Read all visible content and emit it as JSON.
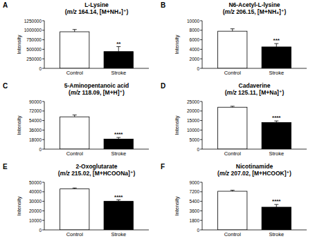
{
  "chart_data": [
    {
      "type": "bar",
      "label": "A",
      "title": "L-Lysine",
      "subtitle": "(m/z 164.14, [M+NH₄]⁺)",
      "y_label": "Intensity",
      "categories": [
        "Control",
        "Stroke"
      ],
      "values": [
        960000,
        440000
      ],
      "errors": [
        60000,
        130000
      ],
      "colors": [
        "#ffffff",
        "#000000"
      ],
      "annotation": "**",
      "ylim": [
        0,
        1250000
      ],
      "yticks": [
        0,
        250000,
        500000,
        750000,
        1000000,
        1250000
      ]
    },
    {
      "type": "bar",
      "label": "B",
      "title": "N6-Acetyl-L-lysine",
      "subtitle": "(m/z 206.15, [M+NH₄]⁺)",
      "y_label": "Intensity",
      "categories": [
        "Control",
        "Stroke"
      ],
      "values": [
        7800,
        4500
      ],
      "errors": [
        500,
        700
      ],
      "colors": [
        "#ffffff",
        "#000000"
      ],
      "annotation": "***",
      "ylim": [
        0,
        10000
      ],
      "yticks": [
        0,
        2000,
        4000,
        6000,
        8000,
        10000
      ]
    },
    {
      "type": "bar",
      "label": "C",
      "title": "5-Aminopentanoic acid",
      "subtitle": "(m/z 118.09, [M+H]⁺)",
      "y_label": "Intensity",
      "categories": [
        "Control",
        "Stroke"
      ],
      "values": [
        61000,
        19000
      ],
      "errors": [
        3500,
        3000
      ],
      "colors": [
        "#ffffff",
        "#000000"
      ],
      "annotation": "****",
      "ylim": [
        0,
        90000
      ],
      "yticks": [
        0,
        18000,
        36000,
        54000,
        72000,
        90000
      ]
    },
    {
      "type": "bar",
      "label": "D",
      "title": "Cadaverine",
      "subtitle": "(m/z 125.11, [M+Na]⁺)",
      "y_label": "Intensity",
      "categories": [
        "Control",
        "Stroke"
      ],
      "values": [
        22000,
        14000
      ],
      "errors": [
        500,
        800
      ],
      "colors": [
        "#ffffff",
        "#000000"
      ],
      "annotation": "****",
      "ylim": [
        0,
        25000
      ],
      "yticks": [
        0,
        5000,
        10000,
        15000,
        20000,
        25000
      ]
    },
    {
      "type": "bar",
      "label": "E",
      "title": "2-Oxoglutarate",
      "subtitle": "(m/z 215.02, [M+HCOONa]⁺)",
      "y_label": "Intensity",
      "categories": [
        "Control",
        "Stroke"
      ],
      "values": [
        43000,
        30000
      ],
      "errors": [
        1000,
        1500
      ],
      "colors": [
        "#ffffff",
        "#000000"
      ],
      "annotation": "****",
      "ylim": [
        0,
        50000
      ],
      "yticks": [
        0,
        10000,
        20000,
        30000,
        40000,
        50000
      ]
    },
    {
      "type": "bar",
      "label": "F",
      "title": "Nicotinamide",
      "subtitle": "(m/z 207.02, [M+HCOOK]⁺)",
      "y_label": "Intensity",
      "categories": [
        "Control",
        "Stroke"
      ],
      "values": [
        7300,
        4300
      ],
      "errors": [
        200,
        500
      ],
      "colors": [
        "#ffffff",
        "#000000"
      ],
      "annotation": "****",
      "ylim": [
        0,
        9000
      ],
      "yticks": [
        0,
        1800,
        3600,
        5400,
        7200,
        9000
      ]
    }
  ]
}
